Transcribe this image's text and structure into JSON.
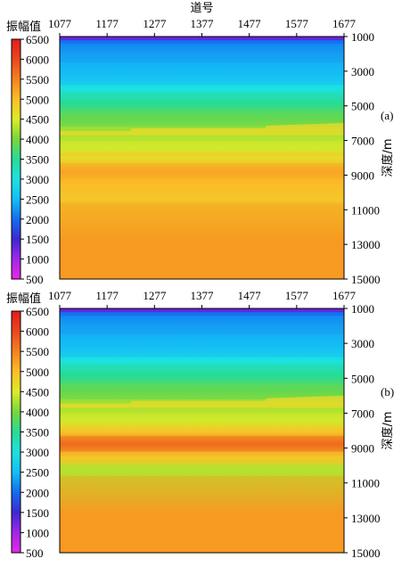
{
  "chart_data": [
    {
      "type": "heatmap",
      "panel_label": "(a)",
      "x_title": "道号",
      "x_ticks": [
        "1077",
        "1177",
        "1277",
        "1377",
        "1477",
        "1577",
        "1677"
      ],
      "x_range": [
        1077,
        1677
      ],
      "y_title": "深度/m",
      "y_ticks": [
        "1000",
        "3000",
        "5000",
        "7000",
        "9000",
        "11000",
        "13000",
        "15000"
      ],
      "y_range": [
        1000,
        15000
      ],
      "colorbar_title": "振幅值",
      "colorbar_ticks": [
        "6500",
        "6000",
        "5500",
        "5000",
        "4500",
        "4000",
        "3500",
        "3000",
        "2500",
        "2000",
        "1500",
        "1000",
        "500"
      ],
      "colorbar_range": [
        500,
        6500
      ],
      "layers": [
        {
          "top_depth": 1000,
          "bottom_depth": 1100,
          "value": 1600
        },
        {
          "top_depth": 1100,
          "bottom_depth": 1400,
          "value": 2000
        },
        {
          "top_depth": 1400,
          "bottom_depth": 2500,
          "value": 2300
        },
        {
          "top_depth": 2500,
          "bottom_depth": 3800,
          "value": 2500
        },
        {
          "top_depth": 3800,
          "bottom_depth": 4200,
          "value": 3000
        },
        {
          "top_depth": 4200,
          "bottom_depth": 4600,
          "value": 3300
        },
        {
          "top_depth": 4600,
          "bottom_depth": 5100,
          "value": 3500
        },
        {
          "top_depth": 5100,
          "bottom_depth": 5400,
          "value": 3700
        },
        {
          "top_depth": 5400,
          "bottom_depth": 6200,
          "value": 3900
        },
        {
          "top_depth": 6200,
          "bottom_depth": 7000,
          "value": 4250
        },
        {
          "top_depth": 7000,
          "bottom_depth": 7800,
          "value": 4450
        },
        {
          "top_depth": 7800,
          "bottom_depth": 8300,
          "value": 4700
        },
        {
          "top_depth": 8300,
          "bottom_depth": 9200,
          "value": 5200
        },
        {
          "top_depth": 9200,
          "bottom_depth": 10000,
          "value": 5000
        },
        {
          "top_depth": 10000,
          "bottom_depth": 10600,
          "value": 4900
        },
        {
          "top_depth": 10600,
          "bottom_depth": 15000,
          "value": 5300
        }
      ]
    },
    {
      "type": "heatmap",
      "panel_label": "(b)",
      "x_title": "",
      "x_ticks": [
        "1077",
        "1177",
        "1277",
        "1377",
        "1477",
        "1577",
        "1677"
      ],
      "x_range": [
        1077,
        1677
      ],
      "y_title": "深度/m",
      "y_ticks": [
        "1000",
        "3000",
        "5000",
        "7000",
        "9000",
        "11000",
        "13000",
        "15000"
      ],
      "y_range": [
        1000,
        15000
      ],
      "colorbar_title": "振幅值",
      "colorbar_ticks": [
        "6500",
        "6000",
        "5500",
        "5000",
        "4500",
        "4000",
        "3500",
        "3000",
        "2500",
        "2000",
        "1500",
        "1000",
        "500"
      ],
      "colorbar_range": [
        500,
        6500
      ],
      "layers": [
        {
          "top_depth": 1000,
          "bottom_depth": 1100,
          "value": 1600
        },
        {
          "top_depth": 1100,
          "bottom_depth": 1400,
          "value": 2000
        },
        {
          "top_depth": 1400,
          "bottom_depth": 2500,
          "value": 2300
        },
        {
          "top_depth": 2500,
          "bottom_depth": 3800,
          "value": 2500
        },
        {
          "top_depth": 3800,
          "bottom_depth": 4200,
          "value": 3000
        },
        {
          "top_depth": 4200,
          "bottom_depth": 4600,
          "value": 3300
        },
        {
          "top_depth": 4600,
          "bottom_depth": 5100,
          "value": 3500
        },
        {
          "top_depth": 5100,
          "bottom_depth": 5400,
          "value": 3700
        },
        {
          "top_depth": 5400,
          "bottom_depth": 6200,
          "value": 3900
        },
        {
          "top_depth": 6200,
          "bottom_depth": 7000,
          "value": 4250
        },
        {
          "top_depth": 7000,
          "bottom_depth": 7800,
          "value": 4450
        },
        {
          "top_depth": 7800,
          "bottom_depth": 8300,
          "value": 4900
        },
        {
          "top_depth": 8300,
          "bottom_depth": 9200,
          "value": 5700
        },
        {
          "top_depth": 9200,
          "bottom_depth": 9900,
          "value": 4900
        },
        {
          "top_depth": 9900,
          "bottom_depth": 10600,
          "value": 4300
        },
        {
          "top_depth": 10600,
          "bottom_depth": 15000,
          "value": 5300
        }
      ]
    }
  ]
}
